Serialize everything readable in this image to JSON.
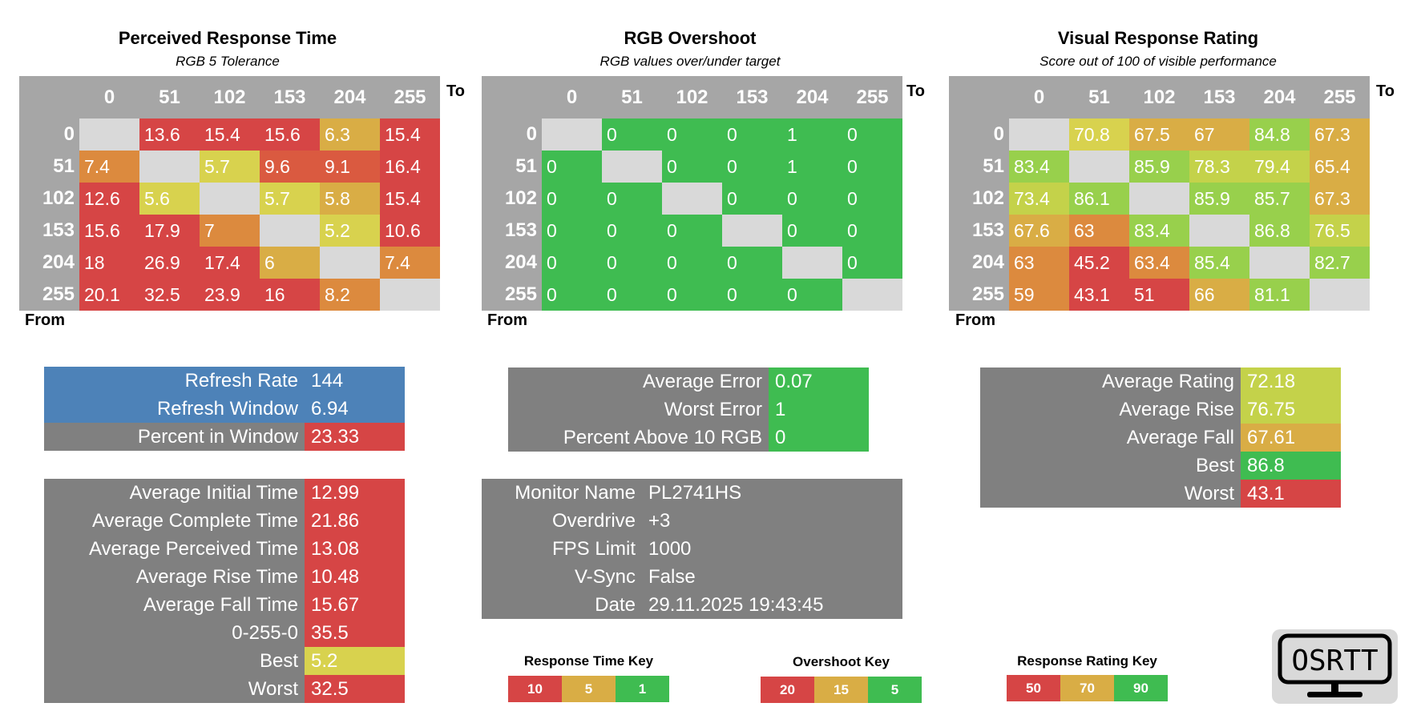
{
  "colors": {
    "red": "#d64545",
    "red_orange": "#da5a40",
    "orange": "#dc8a3e",
    "amber": "#d9ad45",
    "yellow": "#d8d24e",
    "yellow_green": "#c4d24a",
    "light_green": "#98d04c",
    "green": "#3fbc51",
    "diag": "#d9d9d9",
    "header_gray": "#a6a6a6",
    "label_gray": "#808080",
    "blue": "#4d82b8"
  },
  "chart_data": [
    {
      "type": "heatmap",
      "title": "Perceived Response Time",
      "subtitle": "RGB 5 Tolerance",
      "xlabel": "To",
      "ylabel": "From",
      "x_categories": [
        "0",
        "51",
        "102",
        "153",
        "204",
        "255"
      ],
      "y_categories": [
        "0",
        "51",
        "102",
        "153",
        "204",
        "255"
      ],
      "values": [
        [
          null,
          "13.6",
          "15.4",
          "15.6",
          "6.3",
          "15.4"
        ],
        [
          "7.4",
          null,
          "5.7",
          "9.6",
          "9.1",
          "16.4"
        ],
        [
          "12.6",
          "5.6",
          null,
          "5.7",
          "5.8",
          "15.4"
        ],
        [
          "15.6",
          "17.9",
          "7",
          null,
          "5.2",
          "10.6"
        ],
        [
          "18",
          "26.9",
          "17.4",
          "6",
          null,
          "7.4"
        ],
        [
          "20.1",
          "32.5",
          "23.9",
          "16",
          "8.2",
          null
        ]
      ],
      "cell_colors": [
        [
          null,
          "red",
          "red",
          "red",
          "amber",
          "red"
        ],
        [
          "orange",
          null,
          "yellow",
          "red_orange",
          "red_orange",
          "red"
        ],
        [
          "red",
          "yellow",
          null,
          "yellow",
          "amber",
          "red"
        ],
        [
          "red",
          "red",
          "orange",
          null,
          "yellow",
          "red"
        ],
        [
          "red",
          "red",
          "red",
          "amber",
          null,
          "orange"
        ],
        [
          "red",
          "red",
          "red",
          "red",
          "orange",
          null
        ]
      ]
    },
    {
      "type": "heatmap",
      "title": "RGB Overshoot",
      "subtitle": "RGB values over/under target",
      "xlabel": "To",
      "ylabel": "From",
      "x_categories": [
        "0",
        "51",
        "102",
        "153",
        "204",
        "255"
      ],
      "y_categories": [
        "0",
        "51",
        "102",
        "153",
        "204",
        "255"
      ],
      "values": [
        [
          null,
          "0",
          "0",
          "0",
          "1",
          "0"
        ],
        [
          "0",
          null,
          "0",
          "0",
          "1",
          "0"
        ],
        [
          "0",
          "0",
          null,
          "0",
          "0",
          "0"
        ],
        [
          "0",
          "0",
          "0",
          null,
          "0",
          "0"
        ],
        [
          "0",
          "0",
          "0",
          "0",
          null,
          "0"
        ],
        [
          "0",
          "0",
          "0",
          "0",
          "0",
          null
        ]
      ],
      "cell_colors": [
        [
          null,
          "green",
          "green",
          "green",
          "green",
          "green"
        ],
        [
          "green",
          null,
          "green",
          "green",
          "green",
          "green"
        ],
        [
          "green",
          "green",
          null,
          "green",
          "green",
          "green"
        ],
        [
          "green",
          "green",
          "green",
          null,
          "green",
          "green"
        ],
        [
          "green",
          "green",
          "green",
          "green",
          null,
          "green"
        ],
        [
          "green",
          "green",
          "green",
          "green",
          "green",
          null
        ]
      ]
    },
    {
      "type": "heatmap",
      "title": "Visual Response Rating",
      "subtitle": "Score out of 100 of visible performance",
      "xlabel": "To",
      "ylabel": "From",
      "x_categories": [
        "0",
        "51",
        "102",
        "153",
        "204",
        "255"
      ],
      "y_categories": [
        "0",
        "51",
        "102",
        "153",
        "204",
        "255"
      ],
      "values": [
        [
          null,
          "70.8",
          "67.5",
          "67",
          "84.8",
          "67.3"
        ],
        [
          "83.4",
          null,
          "85.9",
          "78.3",
          "79.4",
          "65.4"
        ],
        [
          "73.4",
          "86.1",
          null,
          "85.9",
          "85.7",
          "67.3"
        ],
        [
          "67.6",
          "63",
          "83.4",
          null,
          "86.8",
          "76.5"
        ],
        [
          "63",
          "45.2",
          "63.4",
          "85.4",
          null,
          "82.7"
        ],
        [
          "59",
          "43.1",
          "51",
          "66",
          "81.1",
          null
        ]
      ],
      "cell_colors": [
        [
          null,
          "yellow",
          "amber",
          "amber",
          "light_green",
          "amber"
        ],
        [
          "light_green",
          null,
          "light_green",
          "yellow_green",
          "yellow_green",
          "amber"
        ],
        [
          "yellow_green",
          "light_green",
          null,
          "light_green",
          "light_green",
          "amber"
        ],
        [
          "amber",
          "orange",
          "light_green",
          null,
          "light_green",
          "yellow_green"
        ],
        [
          "orange",
          "red",
          "orange",
          "light_green",
          null,
          "light_green"
        ],
        [
          "orange",
          "red",
          "red",
          "amber",
          "light_green",
          null
        ]
      ]
    }
  ],
  "refresh_stats": [
    {
      "label": "Refresh Rate",
      "value": "144",
      "color": "blue"
    },
    {
      "label": "Refresh Window",
      "value": "6.94",
      "color": "blue"
    },
    {
      "label": "Percent in Window",
      "value": "23.33",
      "color": "red"
    }
  ],
  "time_stats": [
    {
      "label": "Average Initial Time",
      "value": "12.99",
      "color": "red"
    },
    {
      "label": "Average Complete Time",
      "value": "21.86",
      "color": "red"
    },
    {
      "label": "Average Perceived Time",
      "value": "13.08",
      "color": "red"
    },
    {
      "label": "Average Rise Time",
      "value": "10.48",
      "color": "red"
    },
    {
      "label": "Average Fall Time",
      "value": "15.67",
      "color": "red"
    },
    {
      "label": "0-255-0",
      "value": "35.5",
      "color": "red"
    },
    {
      "label": "Best",
      "value": "5.2",
      "color": "yellow"
    },
    {
      "label": "Worst",
      "value": "32.5",
      "color": "red"
    }
  ],
  "overshoot_stats": [
    {
      "label": "Average Error",
      "value": "0.07",
      "color": "green"
    },
    {
      "label": "Worst Error",
      "value": "1",
      "color": "green"
    },
    {
      "label": "Percent Above 10 RGB",
      "value": "0",
      "color": "green"
    }
  ],
  "monitor_info": [
    {
      "label": "Monitor Name",
      "value": "PL2741HS"
    },
    {
      "label": "Overdrive",
      "value": "+3"
    },
    {
      "label": "FPS Limit",
      "value": "1000"
    },
    {
      "label": "V-Sync",
      "value": "False"
    },
    {
      "label": "Date",
      "value": "29.11.2025 19:43:45"
    }
  ],
  "rating_stats": [
    {
      "label": "Average Rating",
      "value": "72.18",
      "color": "yellow_green"
    },
    {
      "label": "Average Rise",
      "value": "76.75",
      "color": "yellow_green"
    },
    {
      "label": "Average Fall",
      "value": "67.61",
      "color": "amber"
    },
    {
      "label": "Best",
      "value": "86.8",
      "color": "green"
    },
    {
      "label": "Worst",
      "value": "43.1",
      "color": "red"
    }
  ],
  "keys": [
    {
      "title": "Response Time Key",
      "cells": [
        {
          "label": "10",
          "color": "red"
        },
        {
          "label": "5",
          "color": "amber"
        },
        {
          "label": "1",
          "color": "green"
        }
      ]
    },
    {
      "title": "Overshoot Key",
      "cells": [
        {
          "label": "20",
          "color": "red"
        },
        {
          "label": "15",
          "color": "amber"
        },
        {
          "label": "5",
          "color": "green"
        }
      ]
    },
    {
      "title": "Response Rating Key",
      "cells": [
        {
          "label": "50",
          "color": "red"
        },
        {
          "label": "70",
          "color": "amber"
        },
        {
          "label": "90",
          "color": "green"
        }
      ]
    }
  ],
  "logo": {
    "text": "OSRTT"
  }
}
